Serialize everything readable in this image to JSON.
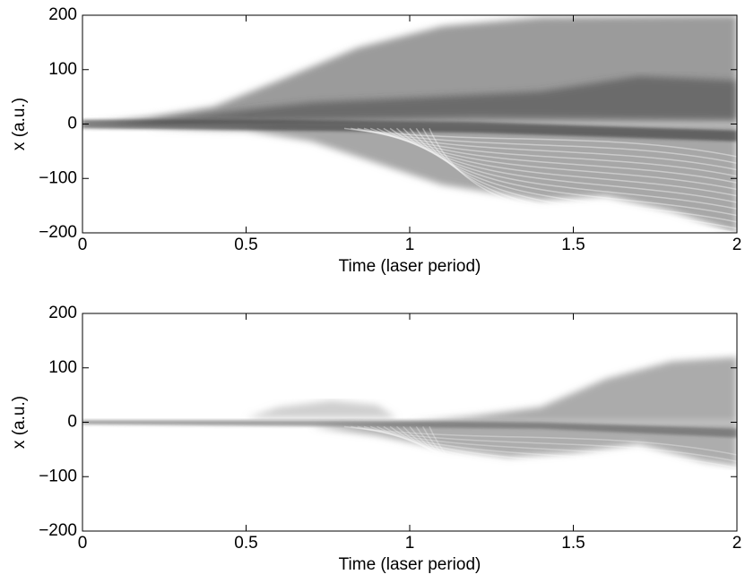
{
  "chart_data": [
    {
      "type": "density",
      "x_label": "Time (laser period)",
      "y_label": "x (a.u.)",
      "xlim": [
        0,
        2
      ],
      "ylim": [
        -200,
        200
      ],
      "xticks": [
        0,
        0.5,
        1,
        1.5,
        2
      ],
      "yticks": [
        {
          "value": -200,
          "label": "−200"
        },
        {
          "value": -100,
          "label": "−100"
        },
        0,
        100,
        200
      ]
    },
    {
      "type": "density",
      "x_label": "Time (laser period)",
      "y_label": "x (a.u.)",
      "xlim": [
        0,
        2
      ],
      "ylim": [
        -200,
        200
      ],
      "xticks": [
        0,
        0.5,
        1,
        1.5,
        2
      ],
      "yticks": [
        {
          "value": -200,
          "label": "−200"
        },
        {
          "value": -100,
          "label": "−100"
        },
        0,
        100,
        200
      ]
    }
  ]
}
